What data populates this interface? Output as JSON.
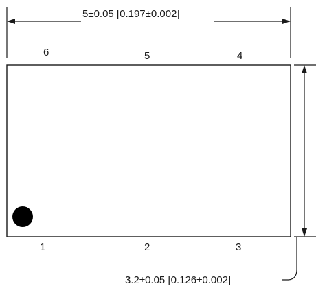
{
  "dimensions": {
    "width_label": "5±0.05 [0.197±0.002]",
    "height_label": "3.2±0.05 [0.126±0.002]"
  },
  "pins": {
    "top": [
      "6",
      "5",
      "4"
    ],
    "bottom": [
      "1",
      "2",
      "3"
    ]
  }
}
